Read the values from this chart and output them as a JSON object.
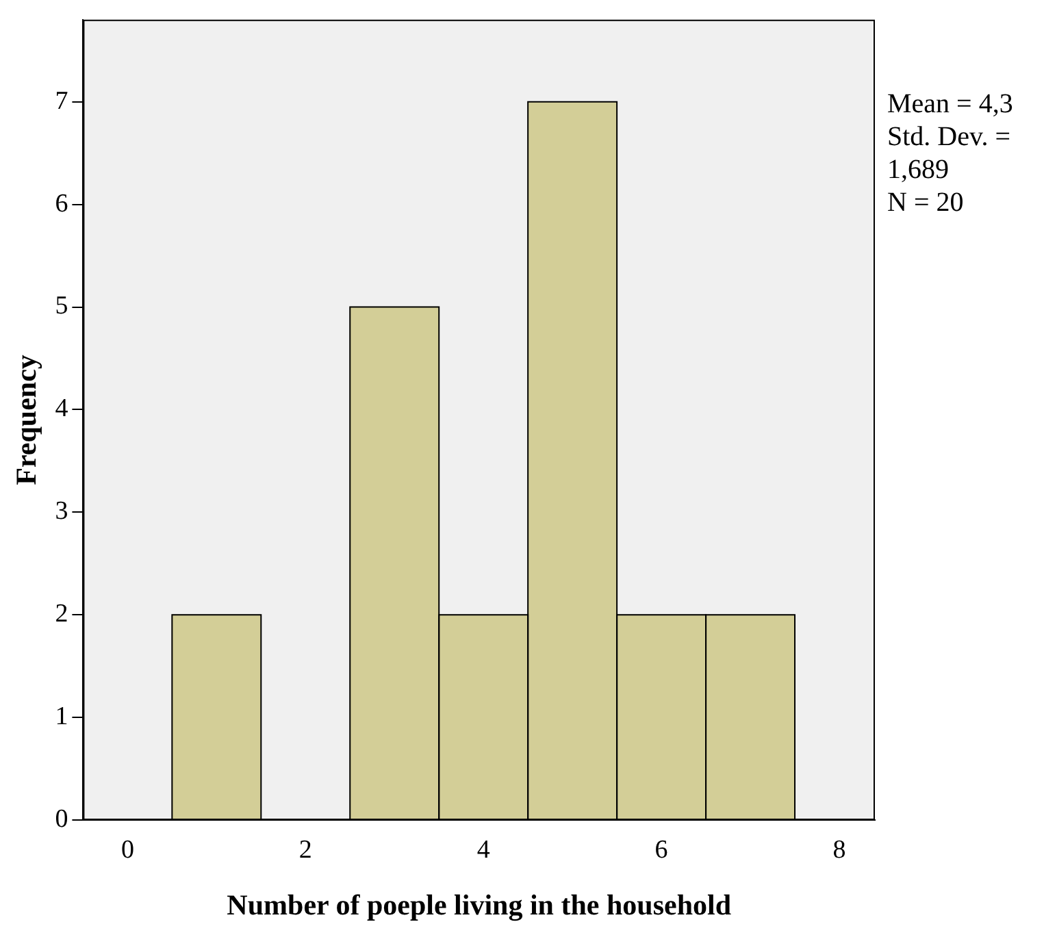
{
  "chart_data": {
    "type": "histogram",
    "xlabel": "Number of poeple living in the household",
    "ylabel": "Frequency",
    "bins": [
      0.5,
      1.5,
      2.5,
      3.5,
      4.5,
      5.5,
      6.5,
      7.5
    ],
    "values": [
      2,
      0,
      5,
      2,
      7,
      2,
      2
    ],
    "color": "#d3ce97",
    "xlim": [
      -0.5,
      8.4
    ],
    "xticks": [
      0,
      2,
      4,
      6,
      8
    ],
    "ylim": [
      0,
      7.8
    ],
    "yticks": [
      0,
      1,
      2,
      3,
      4,
      5,
      6,
      7
    ],
    "grid": false,
    "legend": false,
    "annotations": [
      "Mean = 4,3",
      "Std. Dev. = 1,689",
      "N = 20"
    ]
  }
}
